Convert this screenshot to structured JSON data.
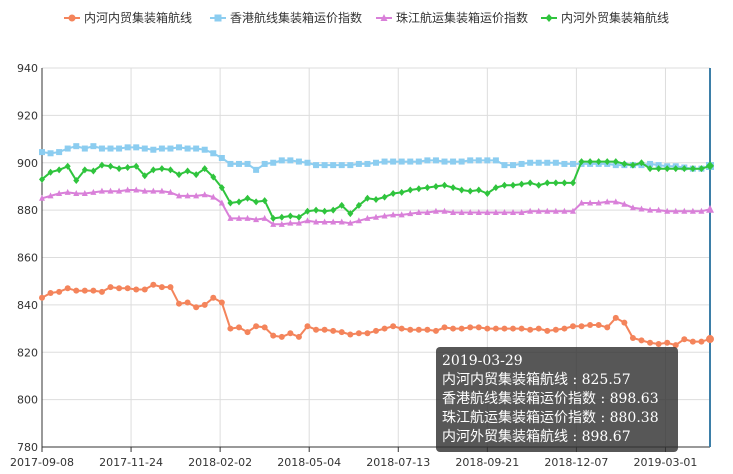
{
  "chart_data": {
    "type": "line",
    "title": "",
    "xlabel": "",
    "ylabel": "",
    "ylim": [
      780,
      940
    ],
    "y_ticks": [
      780,
      800,
      820,
      840,
      860,
      880,
      900,
      920,
      940
    ],
    "x_ticks": [
      "2017-09-08",
      "2017-11-24",
      "2018-02-02",
      "2018-05-04",
      "2018-07-13",
      "2018-09-21",
      "2018-12-07",
      "2019-03-01"
    ],
    "grid": true,
    "legend_position": "top",
    "series": [
      {
        "name": "内河内贸集装箱航线",
        "color": "#f4845b",
        "marker": "circle",
        "values": [
          843,
          845,
          845.5,
          847,
          846,
          846,
          846,
          845.5,
          847.5,
          847,
          847,
          846.5,
          846.5,
          848.5,
          847.5,
          847.5,
          840.5,
          841,
          839,
          840,
          843,
          841,
          830,
          830.5,
          828.5,
          831,
          830.5,
          827,
          826.5,
          828,
          826.5,
          831,
          829.5,
          829.5,
          829,
          828.5,
          827.5,
          828,
          828,
          829,
          830,
          831,
          830,
          829.5,
          829.5,
          829.5,
          829,
          830.5,
          830,
          830,
          830.5,
          830.5,
          830,
          830,
          830,
          830,
          830,
          829.5,
          830,
          829,
          829.5,
          830,
          831,
          831,
          831.5,
          831.5,
          830.5,
          834.5,
          832.5,
          826,
          825,
          824,
          823.5,
          824,
          823,
          825.5,
          824.5,
          824.5,
          825.57
        ]
      },
      {
        "name": "香港航线集装箱运价指数",
        "color": "#8ccdf0",
        "marker": "square",
        "values": [
          904.5,
          904,
          904.5,
          906,
          907,
          906,
          907,
          906,
          906,
          906,
          906.5,
          906.5,
          906,
          905.5,
          906,
          906,
          906.5,
          906,
          906,
          905.5,
          904,
          902,
          899.5,
          899.5,
          899.5,
          897,
          899.5,
          900,
          901,
          901,
          900.5,
          900,
          899,
          899,
          899,
          899,
          899,
          899.5,
          899.5,
          900,
          900.5,
          900.5,
          900.5,
          900.5,
          900.5,
          901,
          901,
          900.5,
          900.5,
          900.5,
          901,
          901,
          901,
          901,
          899,
          899,
          899.5,
          900,
          900,
          900,
          900,
          899.5,
          899.5,
          899.5,
          899.5,
          899.5,
          899.5,
          899,
          899,
          899,
          899,
          899.5,
          899,
          898.5,
          898.5,
          898,
          897.5,
          897.5,
          898.63
        ]
      },
      {
        "name": "珠江航运集装箱运价指数",
        "color": "#d980d9",
        "marker": "triangle",
        "values": [
          885,
          886,
          887,
          887.5,
          887,
          887,
          887.5,
          888,
          888,
          888,
          888.5,
          888.5,
          888,
          888,
          888,
          887.5,
          886,
          886,
          886,
          886.5,
          885.5,
          883,
          876.5,
          876.5,
          876.5,
          876,
          876.5,
          874,
          874,
          874.5,
          874.5,
          875.5,
          875,
          875,
          875,
          875,
          874.5,
          875.5,
          876.5,
          877,
          877.5,
          878,
          878,
          878.5,
          879,
          879,
          879.5,
          879.5,
          879,
          879,
          879,
          879,
          879,
          879,
          879,
          879,
          879,
          879.5,
          879.5,
          879.5,
          879.5,
          879.5,
          879.5,
          883,
          883,
          883,
          883.5,
          883.5,
          882.5,
          881,
          880.5,
          880,
          880,
          879.5,
          879.5,
          879.5,
          879.5,
          879.5,
          880.38
        ]
      },
      {
        "name": "内河外贸集装箱航线",
        "color": "#2fc43d",
        "marker": "diamond",
        "values": [
          893,
          896,
          897,
          898.5,
          892.5,
          897,
          896.5,
          899,
          898.5,
          897.5,
          898,
          898.5,
          894.5,
          897,
          897.5,
          897,
          895,
          896.5,
          895,
          897.5,
          894,
          889.5,
          883,
          883.5,
          885,
          883.5,
          884,
          876.5,
          877,
          877.5,
          877,
          879.5,
          880,
          879.5,
          880,
          882,
          878.5,
          882,
          885,
          884.5,
          885.5,
          887,
          887.5,
          888.5,
          889,
          889.5,
          890,
          890.5,
          889.5,
          888.5,
          888,
          888.5,
          887,
          889.5,
          890.5,
          890.5,
          891,
          891.5,
          890.5,
          891.5,
          891.5,
          891.5,
          891.5,
          900.5,
          900.5,
          900.5,
          900.5,
          900.5,
          899.5,
          899,
          900,
          897.5,
          897.5,
          897.5,
          897.5,
          897.5,
          897.5,
          897.5,
          898.67
        ]
      }
    ]
  },
  "tooltip": {
    "date": "2019-03-29",
    "rows": [
      "内河内贸集装箱航线 : 825.57",
      "香港航线集装箱运价指数 : 898.63",
      "珠江航运集装箱运价指数 : 880.38",
      "内河外贸集装箱航线 : 898.67"
    ]
  }
}
